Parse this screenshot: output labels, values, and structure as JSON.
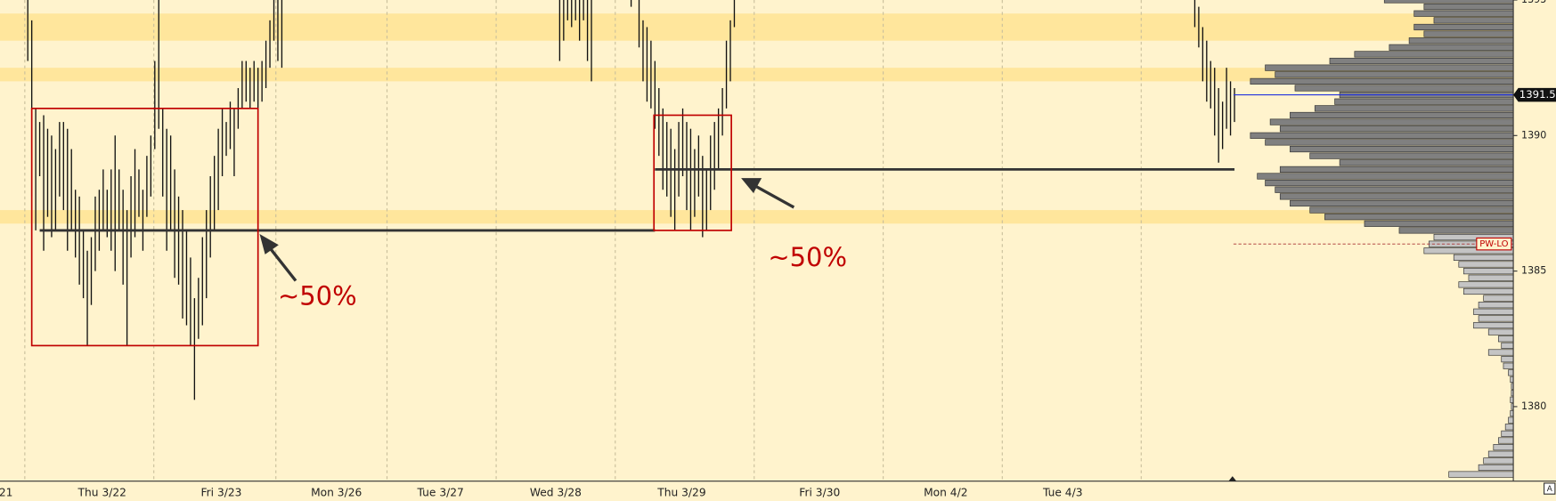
{
  "chart_data": {
    "type": "range_bars",
    "xlim": [
      0,
      311.25
    ],
    "ylim": [
      1377.25,
      1395
    ],
    "yticks": [
      1380,
      1385,
      1390,
      1395
    ],
    "xticks": [
      {
        "value": 1.5,
        "label": "21"
      },
      {
        "value": 25.75,
        "label": "Thu 3/22"
      },
      {
        "value": 55.75,
        "label": "Fri 3/23"
      },
      {
        "value": 84.75,
        "label": "Mon 3/26"
      },
      {
        "value": 111,
        "label": "Tue 3/27"
      },
      {
        "value": 140,
        "label": "Wed 3/28"
      },
      {
        "value": 171.75,
        "label": "Thu 3/29"
      },
      {
        "value": 206.5,
        "label": "Fri 3/30"
      },
      {
        "value": 238.25,
        "label": "Mon 4/2"
      },
      {
        "value": 267.75,
        "label": "Tue 4/3"
      }
    ],
    "session_breaks": [
      6.25,
      38.75,
      69.5,
      97.5,
      125,
      155,
      190,
      222.5,
      252.5,
      287.5
    ],
    "grid": true,
    "bar_color": "#111111",
    "x": [
      7,
      8,
      9,
      10,
      11,
      12,
      13,
      14,
      15,
      16,
      17,
      18,
      19,
      20,
      21,
      22,
      23,
      24,
      25,
      26,
      27,
      28,
      29,
      30,
      31,
      32,
      33,
      34,
      35,
      36,
      37,
      38,
      39,
      40,
      41,
      42,
      43,
      44,
      45,
      46,
      47,
      48,
      49,
      50,
      51,
      52,
      53,
      54,
      55,
      56,
      57,
      58,
      59,
      60,
      61,
      62,
      63,
      64,
      65,
      66,
      67,
      68,
      69,
      70,
      71,
      141,
      142,
      143,
      144,
      145,
      146,
      147,
      148,
      149,
      159,
      161,
      162,
      163,
      164,
      165,
      166,
      167,
      168,
      169,
      170,
      171,
      172,
      173,
      174,
      175,
      176,
      177,
      178,
      179,
      180,
      181,
      182,
      183,
      184,
      185,
      301,
      302,
      303,
      304,
      305,
      306,
      307,
      308,
      309,
      310,
      311
    ],
    "high": [
      1395,
      1394.25,
      1391,
      1390.5,
      1390.75,
      1390.25,
      1390,
      1389.5,
      1390.5,
      1390.5,
      1390.25,
      1389.5,
      1388,
      1387.75,
      1386.5,
      1385.75,
      1386.25,
      1387.75,
      1388,
      1388.75,
      1388,
      1388.75,
      1390,
      1388.75,
      1388,
      1387.25,
      1388.5,
      1389.5,
      1388.75,
      1388,
      1389.25,
      1390,
      1392.75,
      1395,
      1391,
      1390.25,
      1390,
      1388.75,
      1387.75,
      1387.25,
      1386.5,
      1385.5,
      1384,
      1384.75,
      1386.25,
      1387.25,
      1388.5,
      1389.25,
      1390.25,
      1391,
      1390.5,
      1391.25,
      1391,
      1391.75,
      1392.75,
      1392.75,
      1392.5,
      1392.75,
      1392.5,
      1392.75,
      1393.5,
      1394.25,
      1395,
      1395,
      1395,
      1395,
      1395,
      1395,
      1395,
      1395,
      1395,
      1395,
      1395,
      1395,
      1395,
      1395,
      1394.25,
      1394,
      1393.5,
      1392.75,
      1391.75,
      1391,
      1390.5,
      1390.25,
      1389.5,
      1390.5,
      1391,
      1390.5,
      1390.25,
      1389.5,
      1390,
      1389.25,
      1388.75,
      1390,
      1390.5,
      1391,
      1391.75,
      1393.5,
      1394.25,
      1395,
      1395,
      1394.75,
      1394,
      1393.5,
      1392.75,
      1392.5,
      1391.75,
      1391.25,
      1392.5,
      1392,
      1391.75
    ],
    "low": [
      1392.75,
      1387.75,
      1386.5,
      1388.5,
      1385.75,
      1387,
      1386.25,
      1386.5,
      1387.75,
      1387.25,
      1385.75,
      1386.5,
      1385.5,
      1384.5,
      1384,
      1382.25,
      1383.75,
      1385,
      1385.75,
      1386.5,
      1386.25,
      1385.75,
      1385,
      1386.5,
      1384.5,
      1382.25,
      1385.5,
      1386.25,
      1387,
      1385.75,
      1387,
      1387.75,
      1389.5,
      1390.25,
      1387.75,
      1385.75,
      1386.5,
      1384.75,
      1384.5,
      1383.25,
      1383,
      1382.25,
      1380.25,
      1382.5,
      1383,
      1384,
      1385.5,
      1386.5,
      1387.25,
      1388.5,
      1389.25,
      1389.5,
      1388.5,
      1390.25,
      1391,
      1391.25,
      1391,
      1391.25,
      1390.5,
      1391.25,
      1391.75,
      1392.5,
      1393.5,
      1392.75,
      1392.5,
      1392.75,
      1393.5,
      1394.25,
      1394,
      1394.25,
      1393.5,
      1394.25,
      1392.75,
      1392,
      1394.75,
      1393.25,
      1392,
      1391.25,
      1391,
      1390.25,
      1389.25,
      1388,
      1387.75,
      1387,
      1386.5,
      1387.75,
      1388.5,
      1387.25,
      1386.5,
      1387,
      1387.75,
      1386.25,
      1386.5,
      1387.25,
      1388,
      1388.75,
      1390,
      1391,
      1392,
      1394,
      1394,
      1393.25,
      1392,
      1391.25,
      1391,
      1390,
      1389,
      1389.5,
      1390.25,
      1390,
      1390.5
    ],
    "zones": [
      [
        1393.5,
        1394.5
      ],
      [
        1392,
        1392.5
      ],
      [
        1386.75,
        1387.25
      ]
    ],
    "zone_color": "#ffe69c",
    "levels": [
      {
        "price": 1386.5,
        "from": 10,
        "to": 165
      },
      {
        "price": 1388.75,
        "from": 165,
        "to": 311
      }
    ],
    "boxes": [
      {
        "x": [
          8,
          65
        ],
        "price": [
          1382.25,
          1391
        ]
      },
      {
        "x": [
          164.75,
          184.25
        ],
        "price": [
          1386.5,
          1390.75
        ]
      }
    ],
    "annotations": [
      "~50%",
      "~50%"
    ],
    "last_price": {
      "value": 1391.5,
      "label": "1391.50"
    },
    "pw_lo": {
      "value": 1386,
      "label": "PW-LO"
    },
    "profile": {
      "dark_color": "#808080",
      "light_color": "#c4c4c4",
      "value_area_low": 1386.5,
      "prices": [
        1395,
        1394.75,
        1394.5,
        1394.25,
        1394,
        1393.75,
        1393.5,
        1393.25,
        1393,
        1392.75,
        1392.5,
        1392.25,
        1392,
        1391.75,
        1391.5,
        1391.25,
        1391,
        1390.75,
        1390.5,
        1390.25,
        1390,
        1389.75,
        1389.5,
        1389.25,
        1389,
        1388.75,
        1388.5,
        1388.25,
        1388,
        1387.75,
        1387.5,
        1387.25,
        1387,
        1386.75,
        1386.5,
        1386.25,
        1386,
        1385.75,
        1385.5,
        1385.25,
        1385,
        1384.75,
        1384.5,
        1384.25,
        1384,
        1383.75,
        1383.5,
        1383.25,
        1383,
        1382.75,
        1382.5,
        1382.25,
        1382,
        1381.75,
        1381.5,
        1381.25,
        1381,
        1380.75,
        1380.5,
        1380.25,
        1380,
        1379.75,
        1379.5,
        1379.25,
        1379,
        1378.75,
        1378.5,
        1378.25,
        1378,
        1377.75,
        1377.5
      ],
      "values": [
        130,
        90,
        100,
        80,
        100,
        90,
        105,
        125,
        160,
        185,
        250,
        240,
        265,
        220,
        175,
        180,
        200,
        225,
        245,
        235,
        265,
        250,
        225,
        205,
        175,
        235,
        258,
        250,
        240,
        235,
        225,
        205,
        190,
        150,
        115,
        80,
        85,
        90,
        60,
        55,
        50,
        45,
        55,
        50,
        30,
        35,
        40,
        35,
        40,
        25,
        15,
        12,
        25,
        12,
        10,
        5,
        3,
        2,
        2,
        3,
        2,
        3,
        5,
        8,
        12,
        15,
        20,
        25,
        30,
        35,
        65
      ]
    }
  }
}
